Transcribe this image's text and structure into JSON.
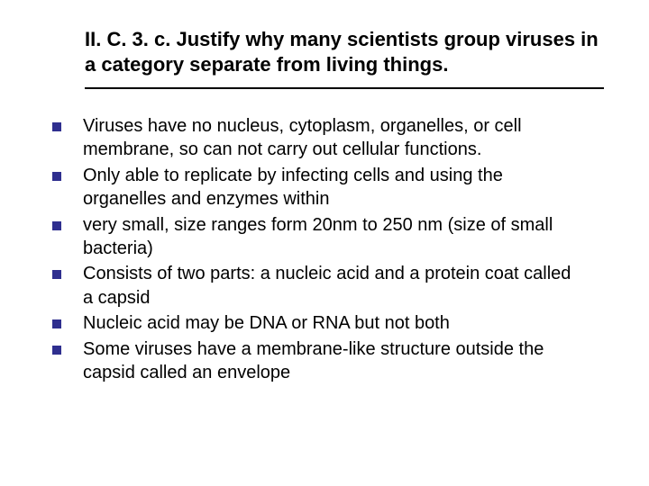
{
  "slide": {
    "title": "II. C. 3. c. Justify why many scientists group viruses in a category separate from living things.",
    "title_fontsize": 22,
    "title_color": "#000000",
    "rule_color": "#000000",
    "body_fontsize": 20,
    "body_color": "#000000",
    "bullet_color": "#2f2f8f",
    "bullet_size": 10,
    "background_color": "#ffffff",
    "items": [
      "Viruses have no nucleus, cytoplasm, organelles, or cell membrane, so can not carry out cellular functions.",
      "Only able to replicate by infecting cells and using the organelles and enzymes within",
      "very small, size ranges form 20nm to 250 nm (size of small bacteria)",
      "Consists of two parts: a nucleic acid and a protein coat called a capsid",
      "Nucleic acid may be DNA or RNA but not both",
      "Some viruses have a membrane-like structure outside the capsid called an envelope"
    ]
  }
}
